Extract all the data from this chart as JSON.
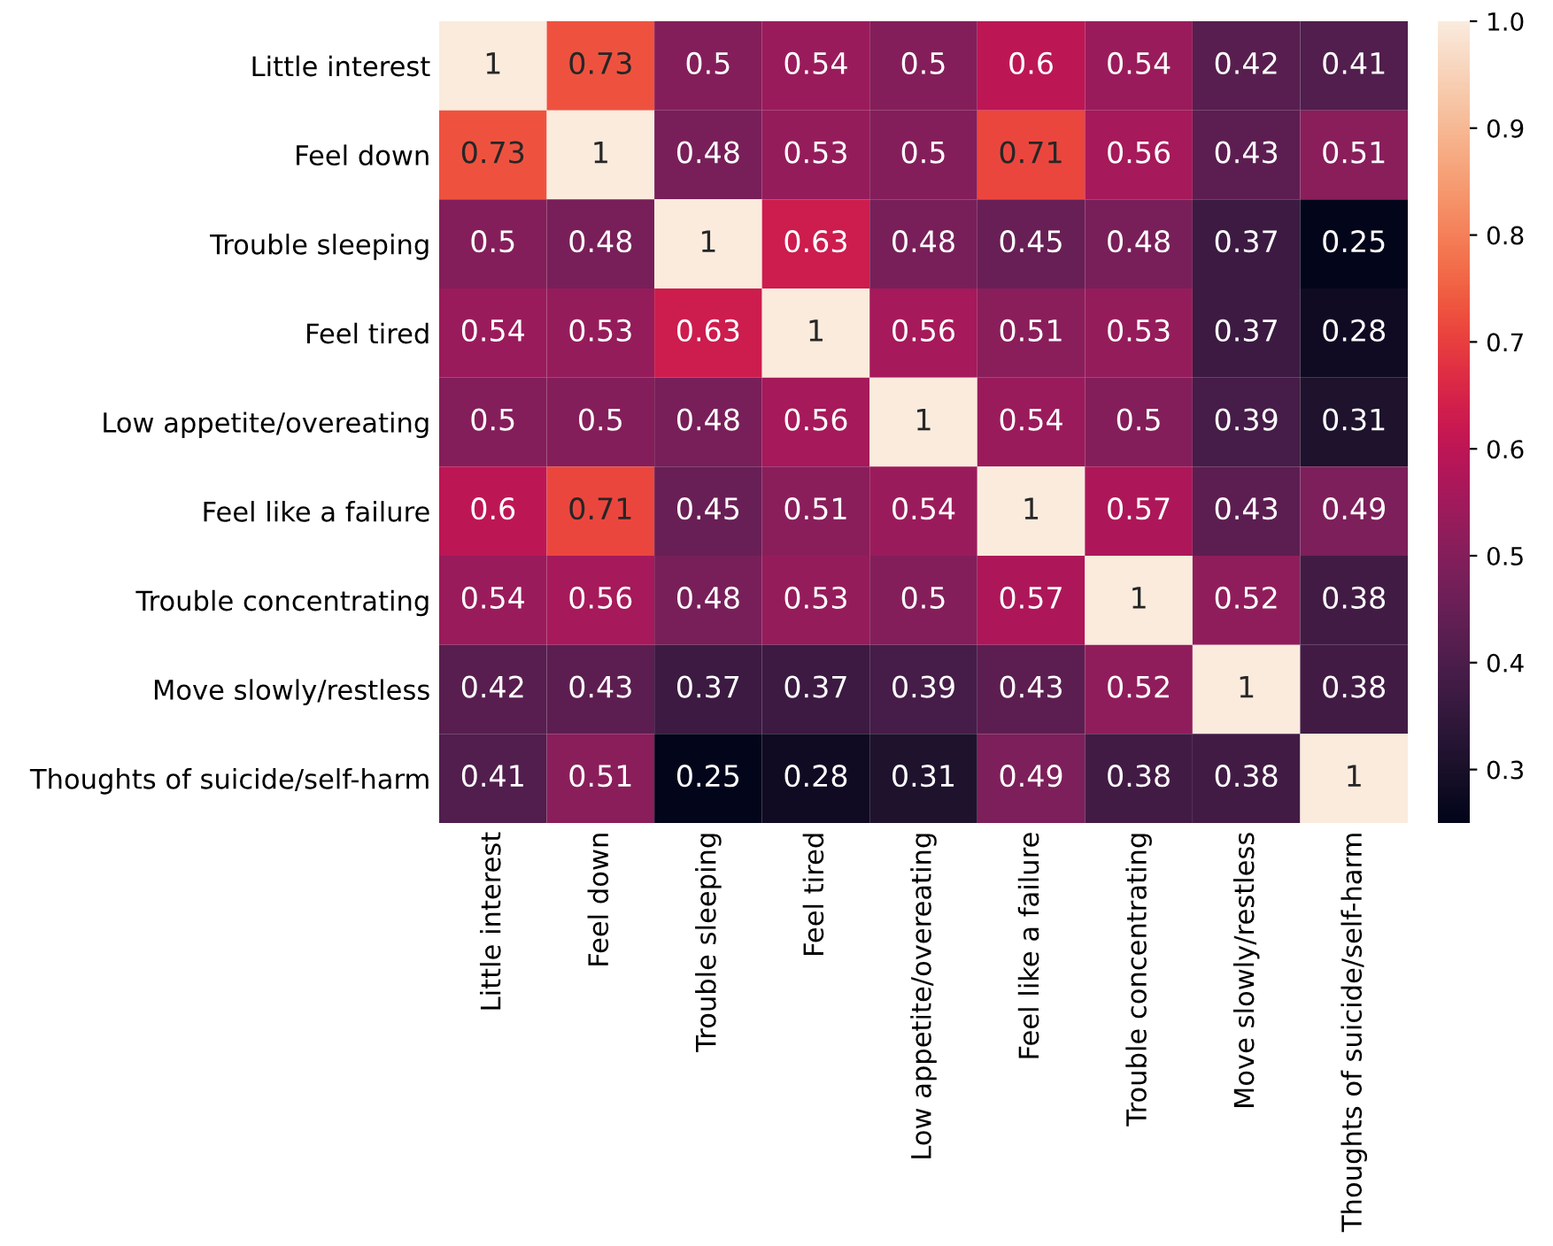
{
  "chart_data": {
    "type": "heatmap",
    "categories": [
      "Little interest",
      "Feel down",
      "Trouble sleeping",
      "Feel tired",
      "Low appetite/overeating",
      "Feel like a failure",
      "Trouble concentrating",
      "Move slowly/restless",
      "Thoughts of suicide/self-harm"
    ],
    "y_categories": [
      "Little interest",
      "Feel down",
      "Trouble sleeping",
      "Feel tired",
      "Low appetite/overeating",
      "Feel like a failure",
      "Trouble concentrating",
      "Move slowly/restless",
      "Thoughts of suicide/self-harm"
    ],
    "cells": [
      [
        1,
        0.73,
        0.5,
        0.54,
        0.5,
        0.6,
        0.54,
        0.42,
        0.41
      ],
      [
        0.73,
        1,
        0.48,
        0.53,
        0.5,
        0.71,
        0.56,
        0.43,
        0.51
      ],
      [
        0.5,
        0.48,
        1,
        0.63,
        0.48,
        0.45,
        0.48,
        0.37,
        0.25
      ],
      [
        0.54,
        0.53,
        0.63,
        1,
        0.56,
        0.51,
        0.53,
        0.37,
        0.28
      ],
      [
        0.5,
        0.5,
        0.48,
        0.56,
        1,
        0.54,
        0.5,
        0.39,
        0.31
      ],
      [
        0.6,
        0.71,
        0.45,
        0.51,
        0.54,
        1,
        0.57,
        0.43,
        0.49
      ],
      [
        0.54,
        0.56,
        0.48,
        0.53,
        0.5,
        0.57,
        1,
        0.52,
        0.38
      ],
      [
        0.42,
        0.43,
        0.37,
        0.37,
        0.39,
        0.43,
        0.52,
        1,
        0.38
      ],
      [
        0.41,
        0.51,
        0.25,
        0.28,
        0.31,
        0.49,
        0.38,
        0.38,
        1
      ]
    ],
    "clim": [
      0.25,
      1.0
    ],
    "cticks": [
      0.3,
      0.4,
      0.5,
      0.6,
      0.7,
      0.8,
      0.9,
      {
        "value": 1.0,
        "label": "1.0"
      }
    ],
    "data_labels": true
  }
}
